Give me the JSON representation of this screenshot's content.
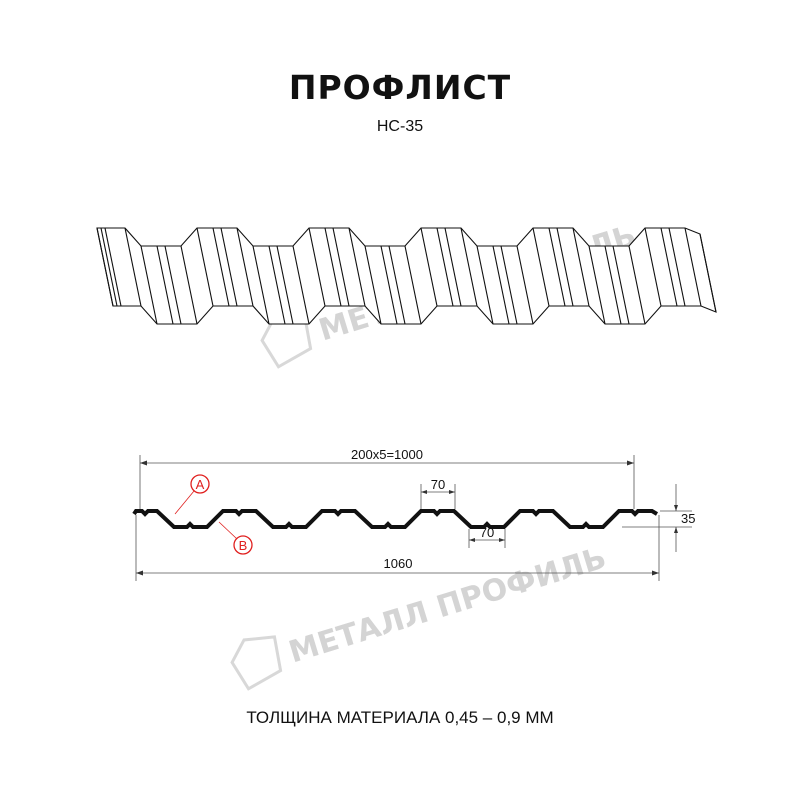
{
  "header": {
    "title": "ПРОФЛИСТ",
    "model": "НС-35"
  },
  "watermark": {
    "text": "МЕТАЛЛ ПРОФИЛЬ",
    "color": "#d4d4d4"
  },
  "drawing": {
    "dimensions": {
      "pitch_total": "200x5=1000",
      "top_flat": "70",
      "bottom_flat": "70",
      "total_width": "1060",
      "height": "35"
    },
    "markers": [
      {
        "label": "A",
        "color": "#e0201f"
      },
      {
        "label": "B",
        "color": "#e0201f"
      }
    ]
  },
  "footer": {
    "thickness_note": "ТОЛЩИНА МАТЕРИАЛА 0,45 – 0,9 ММ"
  }
}
